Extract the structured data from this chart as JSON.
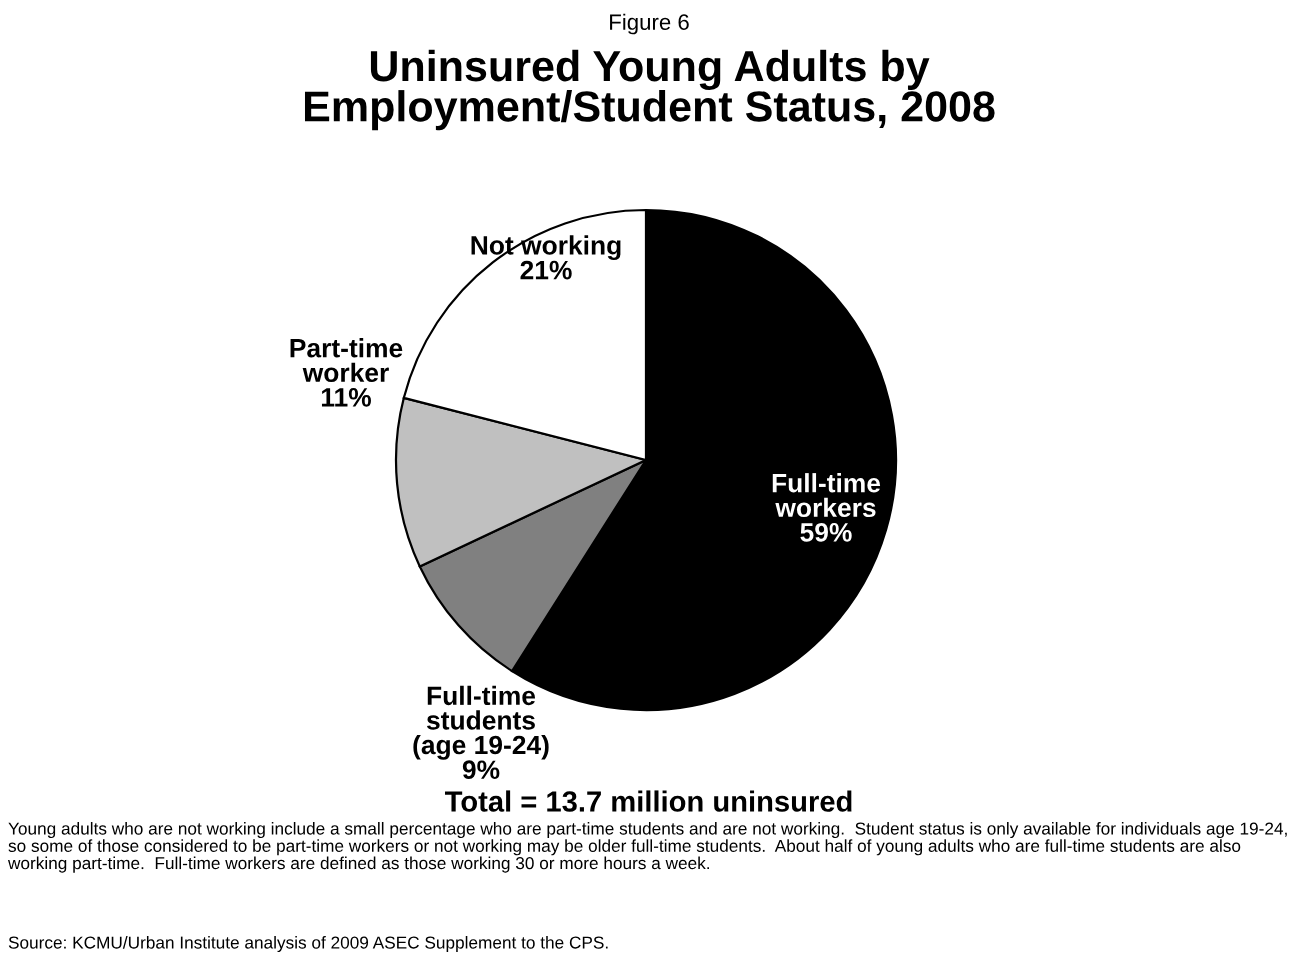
{
  "chart_data": {
    "type": "pie",
    "subtitle": "Figure 6",
    "title": "Uninsured Young Adults by\nEmployment/Student Status, 2008",
    "categories": [
      "Full-time\nworkers\n59%",
      "Full-time\nstudents\n(age 19-24)\n9%",
      "Part-time\nworker\n11%",
      "Not working\n21%"
    ],
    "values": [
      59,
      9,
      11,
      21
    ],
    "colors": [
      "#000000",
      "#808080",
      "#c0c0c0",
      "#ffffff"
    ],
    "annotations": [
      "Total = 13.7 million uninsured",
      "Young adults who are not working include a small percentage who are part-time students and are not working.  Student status is only available for individuals age 19-24, so some of those considered to be part-time workers or not working may be older full-time students.  About half of young adults who are full-time students are also working part-time.  Full-time workers are defined as those working 30 or more hours a week.",
      "Source: KCMU/Urban Institute analysis of 2009 ASEC Supplement to the CPS."
    ]
  }
}
